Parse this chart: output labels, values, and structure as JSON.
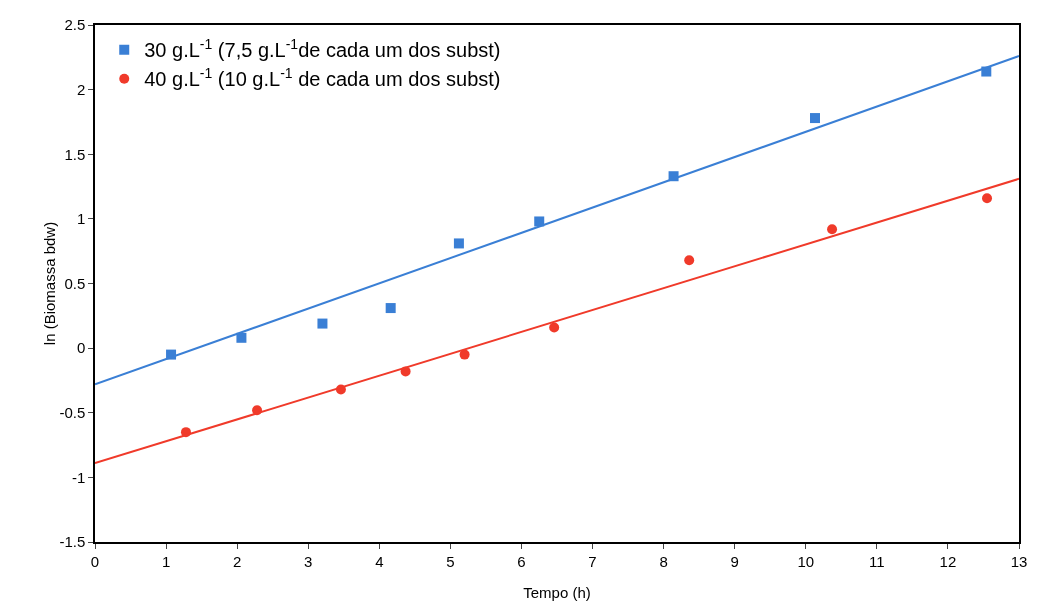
{
  "chart_data": {
    "type": "scatter",
    "xlabel": "Tempo (h)",
    "ylabel": "ln (Biomassa bdw)",
    "xlim": [
      0,
      13
    ],
    "xticks": [
      0,
      1,
      2,
      3,
      4,
      5,
      6,
      7,
      8,
      9,
      10,
      11,
      12,
      13
    ],
    "ylim": [
      -1.5,
      2.5
    ],
    "yticks": [
      -1.5,
      -1.0,
      -0.5,
      0.0,
      0.5,
      1.0,
      1.5,
      2.0,
      2.5
    ],
    "grid": false,
    "legend": "top left",
    "series": [
      {
        "name": "30 g.L$^{-1}$ (7,5 g.L$^{-1}$de cada um dos subst)",
        "marker": "square",
        "color": "#3a7fd5",
        "x": [
          1.07,
          2.06,
          3.2,
          4.16,
          5.12,
          6.25,
          8.14,
          10.13,
          12.54
        ],
        "values": [
          -0.05,
          0.08,
          0.19,
          0.31,
          0.81,
          0.98,
          1.33,
          1.78,
          2.14
        ]
      },
      {
        "name": "40 g.L$^{-1}$ (10 g.L$^{-1}$ de cada um dos subst)",
        "marker": "circle",
        "color": "#f03a2a",
        "x": [
          1.28,
          2.28,
          3.46,
          4.37,
          5.2,
          6.46,
          8.36,
          10.37,
          12.55
        ],
        "values": [
          -0.65,
          -0.48,
          -0.32,
          -0.18,
          -0.05,
          0.16,
          0.68,
          0.92,
          1.16
        ]
      },
      {
        "type": "line",
        "color": "#3a7fd5",
        "line_style": "solid",
        "x": [
          0,
          13
        ],
        "values": [
          -0.28,
          2.26
        ]
      },
      {
        "type": "line",
        "color": "#f03a2a",
        "line_style": "solid",
        "x": [
          0,
          13
        ],
        "values": [
          -0.89,
          1.31
        ]
      }
    ]
  }
}
